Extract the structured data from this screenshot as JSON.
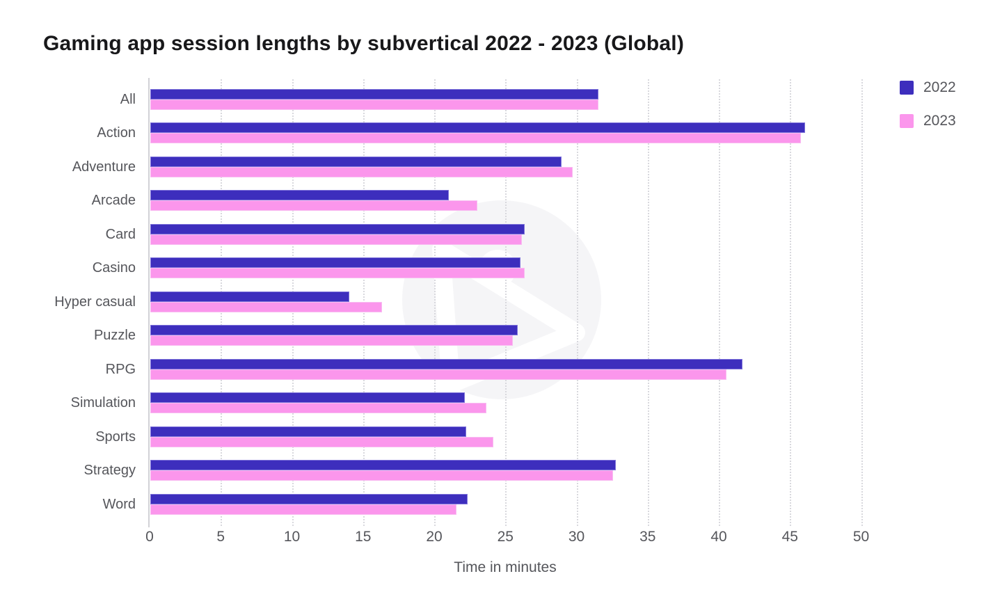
{
  "title": "Gaming app session lengths by subvertical 2022 - 2023 (Global)",
  "legend": {
    "items": [
      {
        "label": "2022",
        "color": "#3d2ebd"
      },
      {
        "label": "2023",
        "color": "#fb96ec"
      }
    ]
  },
  "watermark_name": "appsflyer-logo-watermark",
  "chart_data": {
    "type": "bar",
    "orientation": "horizontal",
    "title": "Gaming app session lengths by subvertical 2022 - 2023 (Global)",
    "xlabel": "Time in minutes",
    "ylabel": "",
    "xlim": [
      0,
      50
    ],
    "xticks": [
      0,
      5,
      10,
      15,
      20,
      25,
      30,
      35,
      40,
      45,
      50
    ],
    "grid": "dotted-vertical",
    "legend_position": "top-right",
    "categories": [
      "All",
      "Action",
      "Adventure",
      "Arcade",
      "Card",
      "Casino",
      "Hyper casual",
      "Puzzle",
      "RPG",
      "Simulation",
      "Sports",
      "Strategy",
      "Word"
    ],
    "series": [
      {
        "name": "2022",
        "color": "#3d2ebd",
        "values": [
          31.5,
          46.0,
          28.9,
          21.0,
          26.3,
          26.0,
          14.0,
          25.8,
          41.6,
          22.1,
          22.2,
          32.7,
          22.3
        ]
      },
      {
        "name": "2023",
        "color": "#fb96ec",
        "values": [
          31.5,
          45.7,
          29.7,
          23.0,
          26.1,
          26.3,
          16.3,
          25.5,
          40.5,
          23.6,
          24.1,
          32.5,
          21.5
        ]
      }
    ],
    "colors": {
      "axis": "#d2d2d6",
      "grid": "#d8d8dd",
      "text": "#55565b",
      "title": "#18181a"
    }
  }
}
